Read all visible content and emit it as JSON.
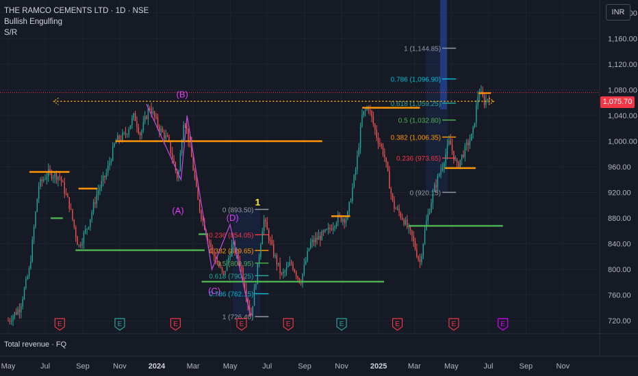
{
  "header": {
    "symbol_line": "THE RAMCO CEMENTS LTD · 1D · NSE",
    "indicator_1": "Bullish Engulfing",
    "indicator_2": "S/R"
  },
  "currency_label": "INR",
  "subpane_label": "Total revenue · FQ",
  "last_price_label": "1,075.70",
  "colors": {
    "background": "#161a25",
    "grid": "#1f2330",
    "up": "#26a69a",
    "down": "#ef5350",
    "resistance": "#ff9800",
    "support": "#4caf50",
    "zigzag": "#b84bd6",
    "last_price": "#f23645",
    "earnings_red": "#f23645",
    "earnings_green": "#26a69a",
    "earnings_purple": "#d500f9"
  },
  "chart_data": {
    "type": "candlestick",
    "ylim": [
      700,
      1220
    ],
    "y_ticks": [
      {
        "v": 1200,
        "label": "1,200.00"
      },
      {
        "v": 1160,
        "label": "1,160.00"
      },
      {
        "v": 1120,
        "label": "1,120.00"
      },
      {
        "v": 1080,
        "label": "1,080.00"
      },
      {
        "v": 1040,
        "label": "1,040.00"
      },
      {
        "v": 1000,
        "label": "1,000.00"
      },
      {
        "v": 960,
        "label": "960.00"
      },
      {
        "v": 920,
        "label": "920.00"
      },
      {
        "v": 880,
        "label": "880.00"
      },
      {
        "v": 840,
        "label": "840.00"
      },
      {
        "v": 800,
        "label": "800.00"
      },
      {
        "v": 760,
        "label": "760.00"
      },
      {
        "v": 720,
        "label": "720.00"
      }
    ],
    "x_range": [
      "2023-05-01",
      "2025-11-30"
    ],
    "x_ticks": [
      {
        "d": "2023-05-01",
        "label": "May"
      },
      {
        "d": "2023-07-01",
        "label": "Jul"
      },
      {
        "d": "2023-09-01",
        "label": "Sep"
      },
      {
        "d": "2023-11-01",
        "label": "Nov"
      },
      {
        "d": "2024-01-01",
        "label": "2024",
        "bold": true
      },
      {
        "d": "2024-03-01",
        "label": "Mar"
      },
      {
        "d": "2024-05-01",
        "label": "May"
      },
      {
        "d": "2024-07-01",
        "label": "Jul"
      },
      {
        "d": "2024-09-01",
        "label": "Sep"
      },
      {
        "d": "2024-11-01",
        "label": "Nov"
      },
      {
        "d": "2025-01-01",
        "label": "2025",
        "bold": true
      },
      {
        "d": "2025-03-01",
        "label": "Mar"
      },
      {
        "d": "2025-05-01",
        "label": "May"
      },
      {
        "d": "2025-07-01",
        "label": "Jul"
      },
      {
        "d": "2025-09-01",
        "label": "Sep"
      },
      {
        "d": "2025-11-01",
        "label": "Nov"
      }
    ],
    "price_path": [
      [
        "2023-05-01",
        720
      ],
      [
        "2023-05-20",
        740
      ],
      [
        "2023-06-05",
        800
      ],
      [
        "2023-06-20",
        930
      ],
      [
        "2023-07-05",
        950
      ],
      [
        "2023-07-25",
        945
      ],
      [
        "2023-08-10",
        900
      ],
      [
        "2023-08-25",
        835
      ],
      [
        "2023-09-10",
        870
      ],
      [
        "2023-09-25",
        920
      ],
      [
        "2023-10-10",
        950
      ],
      [
        "2023-10-25",
        1000
      ],
      [
        "2023-11-10",
        1010
      ],
      [
        "2023-11-25",
        1040
      ],
      [
        "2023-12-05",
        1010
      ],
      [
        "2023-12-20",
        1055
      ],
      [
        "2024-01-05",
        1020
      ],
      [
        "2024-01-20",
        1000
      ],
      [
        "2024-02-05",
        940
      ],
      [
        "2024-02-15",
        1040
      ],
      [
        "2024-02-25",
        990
      ],
      [
        "2024-03-10",
        900
      ],
      [
        "2024-03-25",
        850
      ],
      [
        "2024-04-05",
        820
      ],
      [
        "2024-04-20",
        790
      ],
      [
        "2024-05-05",
        840
      ],
      [
        "2024-05-20",
        800
      ],
      [
        "2024-06-04",
        726
      ],
      [
        "2024-06-15",
        800
      ],
      [
        "2024-06-25",
        880
      ],
      [
        "2024-07-10",
        830
      ],
      [
        "2024-07-25",
        790
      ],
      [
        "2024-08-10",
        810
      ],
      [
        "2024-08-25",
        780
      ],
      [
        "2024-09-10",
        840
      ],
      [
        "2024-09-25",
        850
      ],
      [
        "2024-10-10",
        860
      ],
      [
        "2024-10-25",
        880
      ],
      [
        "2024-11-10",
        880
      ],
      [
        "2024-11-25",
        960
      ],
      [
        "2024-12-05",
        1040
      ],
      [
        "2024-12-15",
        1055
      ],
      [
        "2024-12-28",
        1010
      ],
      [
        "2025-01-10",
        980
      ],
      [
        "2025-01-25",
        900
      ],
      [
        "2025-02-10",
        880
      ],
      [
        "2025-02-25",
        850
      ],
      [
        "2025-03-10",
        810
      ],
      [
        "2025-03-20",
        870
      ],
      [
        "2025-04-01",
        920
      ],
      [
        "2025-04-15",
        960
      ],
      [
        "2025-04-28",
        1000
      ],
      [
        "2025-05-10",
        960
      ],
      [
        "2025-05-25",
        990
      ],
      [
        "2025-06-05",
        1010
      ],
      [
        "2025-06-15",
        1080
      ],
      [
        "2025-06-25",
        1060
      ],
      [
        "2025-07-05",
        1076
      ]
    ],
    "sr_levels": [
      {
        "type": "resistance",
        "start": "2023-06-05",
        "end": "2023-08-10",
        "price": 952
      },
      {
        "type": "resistance",
        "start": "2023-08-25",
        "end": "2023-09-25",
        "price": 926
      },
      {
        "type": "support",
        "start": "2023-08-20",
        "end": "2024-03-20",
        "price": 830
      },
      {
        "type": "support",
        "start": "2023-07-10",
        "end": "2023-07-30",
        "price": 880
      },
      {
        "type": "resistance",
        "start": "2023-10-25",
        "end": "2024-09-30",
        "price": 1000
      },
      {
        "type": "support",
        "start": "2024-03-10",
        "end": "2024-03-25",
        "price": 855
      },
      {
        "type": "support",
        "start": "2024-03-15",
        "end": "2025-01-10",
        "price": 781
      },
      {
        "type": "resistance",
        "start": "2024-10-15",
        "end": "2024-11-15",
        "price": 883
      },
      {
        "type": "resistance",
        "start": "2024-12-05",
        "end": "2025-03-10",
        "price": 1052
      },
      {
        "type": "support",
        "start": "2025-02-20",
        "end": "2025-07-25",
        "price": 868
      },
      {
        "type": "resistance",
        "start": "2025-04-20",
        "end": "2025-06-10",
        "price": 958
      },
      {
        "type": "resistance",
        "start": "2025-06-15",
        "end": "2025-07-05",
        "price": 1075
      }
    ],
    "trendline": {
      "start": "2023-07-15",
      "end": "2025-07-10",
      "price": 1062
    },
    "zigzag": [
      [
        "2023-12-15",
        1058
      ],
      [
        "2024-02-10",
        940
      ],
      [
        "2024-02-20",
        1040
      ],
      [
        "2024-04-01",
        800
      ],
      [
        "2024-05-01",
        870
      ],
      [
        "2024-06-04",
        726
      ]
    ],
    "zigzag_labels": [
      {
        "text": "(B)",
        "d": "2024-02-12",
        "v": 1068
      },
      {
        "text": "(A)",
        "d": "2024-02-05",
        "v": 887
      },
      {
        "text": "(D)",
        "d": "2024-05-05",
        "v": 876
      },
      {
        "text": "(C)",
        "d": "2024-04-05",
        "v": 762
      }
    ],
    "fib_1": {
      "left": "2024-05-05",
      "right": "2024-06-20",
      "levels": [
        {
          "label": "1 (726.40)",
          "v": 726.4,
          "color": "#9598a1"
        },
        {
          "label": "0.786 (762.15)",
          "v": 762.15,
          "color": "#00bcd4"
        },
        {
          "label": "0.618 (790.25)",
          "v": 790.25,
          "color": "#26a69a"
        },
        {
          "label": "0.5 (809.95)",
          "v": 809.95,
          "color": "#4caf50"
        },
        {
          "label": "0.382 (829.65)",
          "v": 829.65,
          "color": "#ff9800"
        },
        {
          "label": "0.236 (854.05)",
          "v": 854.05,
          "color": "#f23645"
        },
        {
          "label": "0 (893.50)",
          "v": 893.5,
          "color": "#9598a1"
        }
      ],
      "marker": "1"
    },
    "fib_2": {
      "left": "2025-03-20",
      "right": "2025-04-25",
      "levels": [
        {
          "label": "0 (920.15)",
          "v": 920.15,
          "color": "#9598a1"
        },
        {
          "label": "0.236 (973.65)",
          "v": 973.65,
          "color": "#f23645"
        },
        {
          "label": "0.382 (1,006.35)",
          "v": 1006.35,
          "color": "#ff9800"
        },
        {
          "label": "0.5 (1,032.80)",
          "v": 1032.8,
          "color": "#4caf50"
        },
        {
          "label": "0.618 (1,059.25)",
          "v": 1059.25,
          "color": "#26a69a"
        },
        {
          "label": "0.786 (1,096.90)",
          "v": 1096.9,
          "color": "#00bcd4"
        },
        {
          "label": "1 (1,144.85)",
          "v": 1144.85,
          "color": "#9598a1"
        }
      ]
    },
    "highlight_band": {
      "d": "2025-04-18"
    },
    "last_price": 1075.7,
    "earnings": [
      {
        "d": "2023-07-25",
        "label": "E",
        "kind": "red"
      },
      {
        "d": "2023-11-01",
        "label": "E",
        "kind": "green"
      },
      {
        "d": "2024-02-01",
        "label": "E",
        "kind": "red"
      },
      {
        "d": "2024-05-20",
        "label": "E",
        "kind": "red"
      },
      {
        "d": "2024-08-05",
        "label": "E",
        "kind": "red"
      },
      {
        "d": "2024-11-01",
        "label": "E",
        "kind": "green"
      },
      {
        "d": "2025-02-01",
        "label": "E",
        "kind": "red"
      },
      {
        "d": "2025-05-05",
        "label": "E",
        "kind": "red"
      },
      {
        "d": "2025-07-25",
        "label": "E",
        "kind": "purple"
      }
    ]
  }
}
